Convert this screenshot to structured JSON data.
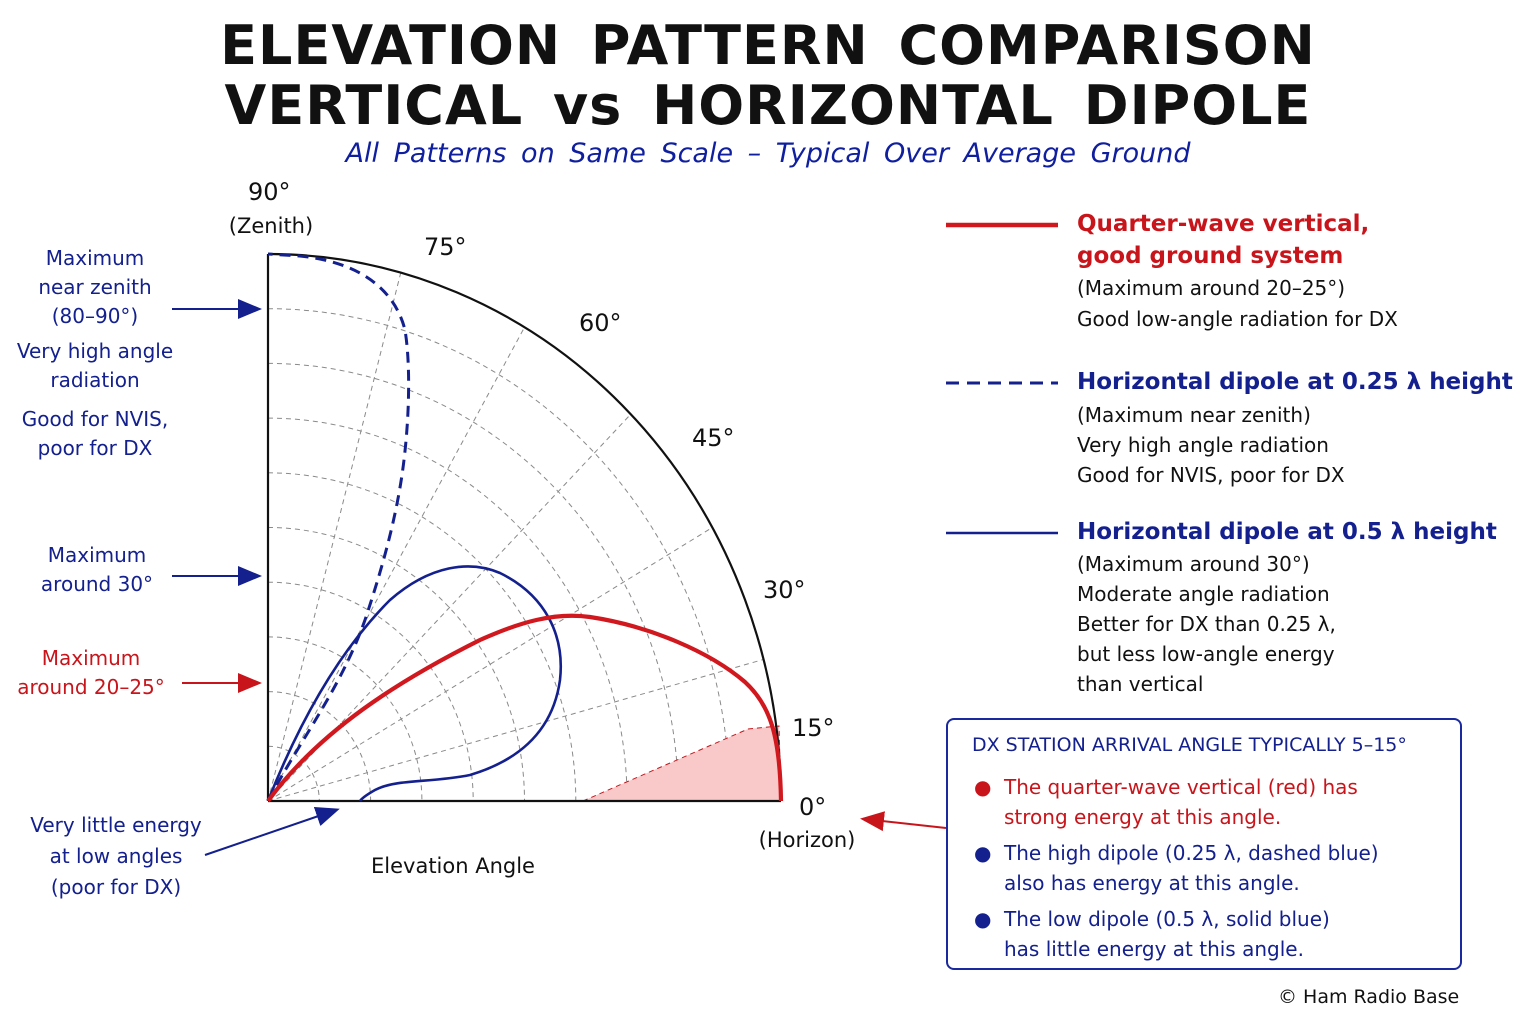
{
  "title": {
    "line1": "ELEVATION PATTERN COMPARISON",
    "line2": "VERTICAL vs HORIZONTAL DIPOLE",
    "subtitle": "All Patterns on Same Scale – Typical Over Average Ground"
  },
  "angle_labels": {
    "a90": "90°",
    "zenith": "(Zenith)",
    "a75": "75°",
    "a60": "60°",
    "a45": "45°",
    "a30": "30°",
    "a15": "15°",
    "a0": "0°",
    "horizon": "(Horizon)"
  },
  "x_axis_label": "Elevation Angle",
  "annotations": {
    "zenith_note": [
      "Maximum",
      "near zenith",
      "(80–90°)",
      "Very high angle",
      "radiation",
      "Good for NVIS,",
      "poor for DX"
    ],
    "thirty_note": [
      "Maximum",
      "around 30°"
    ],
    "vertical_note": [
      "Maximum",
      "around 20–25°"
    ],
    "low_note": [
      "Very little energy",
      "at low angles",
      "(poor for DX)"
    ]
  },
  "legend": {
    "vertical": {
      "title": [
        "Quarter-wave vertical,",
        "good ground system"
      ],
      "sub": "(Maximum around 20–25°)",
      "desc": "Good low-angle radiation for DX"
    },
    "dipole_025": {
      "title": "Horizontal dipole at 0.25 λ height",
      "lines": [
        "(Maximum near zenith)",
        "Very high angle radiation",
        "Good for NVIS, poor for DX"
      ]
    },
    "dipole_05": {
      "title": "Horizontal dipole at 0.5 λ height",
      "lines": [
        "(Maximum around 30°)",
        "Moderate angle radiation",
        "Better for DX than 0.25 λ,",
        "but less low-angle energy",
        "than vertical"
      ]
    }
  },
  "dx_box": {
    "title": "DX STATION ARRIVAL ANGLE TYPICALLY 5–15°",
    "bullets": [
      {
        "lines": [
          "The quarter-wave vertical (red) has",
          "strong energy at this angle."
        ],
        "color": "#c8151b"
      },
      {
        "lines": [
          "The high dipole (0.25 λ, dashed blue)",
          "also has energy at this angle."
        ],
        "color": "#13208e"
      },
      {
        "lines": [
          "The low dipole (0.5 λ, solid blue)",
          "has little energy at this angle."
        ],
        "color": "#13208e"
      }
    ]
  },
  "copyright": "© Ham Radio Base",
  "colors": {
    "vertical": "#d0181e",
    "dipole": "#13208e",
    "dx_region": "#f9c9c9",
    "grid": "#8a8a8a"
  },
  "chart_data": {
    "type": "polar-quarter",
    "angle_ticks": [
      0,
      15,
      30,
      45,
      60,
      75,
      90
    ],
    "radial_rings": 10,
    "highlight_range_deg": [
      5,
      15
    ],
    "series": [
      {
        "name": "Quarter-wave vertical, good ground system",
        "style": "solid-red",
        "peak_angle_deg": 22
      },
      {
        "name": "Horizontal dipole at 0.25 λ height",
        "style": "dashed-blue",
        "peak_angle_deg": 85
      },
      {
        "name": "Horizontal dipole at 0.5 λ height",
        "style": "solid-blue",
        "peak_angle_deg": 30
      }
    ]
  }
}
